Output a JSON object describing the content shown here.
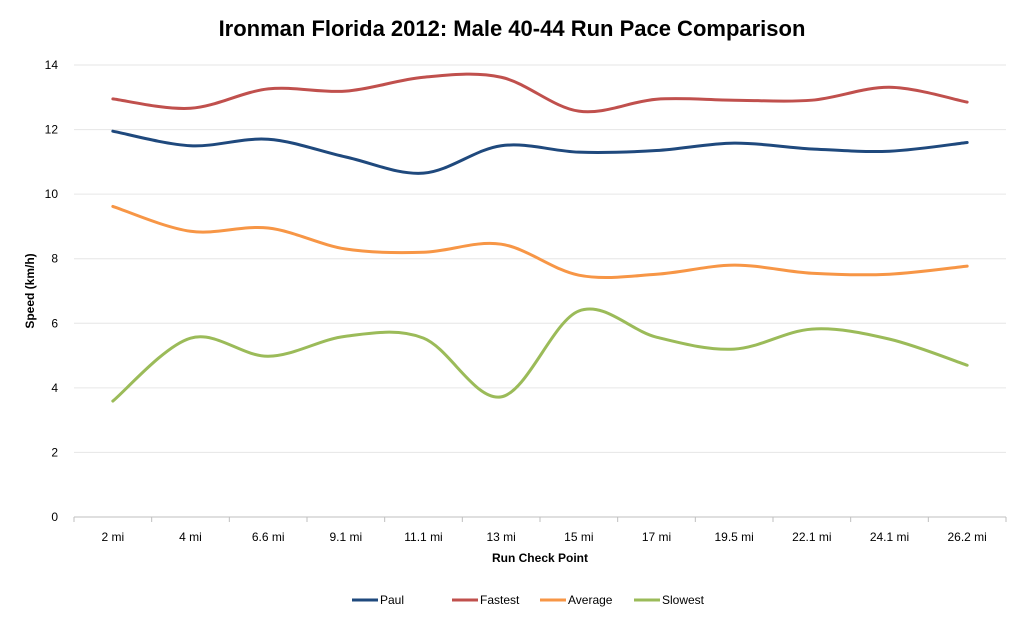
{
  "chart_data": {
    "type": "line",
    "title": "Ironman Florida 2012: Male 40-44 Run Pace Comparison",
    "xlabel": "Run Check Point",
    "ylabel": "Speed (km/h)",
    "ylim": [
      0,
      14
    ],
    "yticks": [
      0,
      2,
      4,
      6,
      8,
      10,
      12,
      14
    ],
    "grid": true,
    "smooth": true,
    "legend_position": "bottom",
    "categories": [
      "2 mi",
      "4 mi",
      "6.6 mi",
      "9.1 mi",
      "11.1 mi",
      "13 mi",
      "15 mi",
      "17 mi",
      "19.5 mi",
      "22.1 mi",
      "24.1 mi",
      "26.2 mi"
    ],
    "series": [
      {
        "name": "Paul",
        "color": "#1f497d",
        "values": [
          11.95,
          11.5,
          11.7,
          11.15,
          10.65,
          11.5,
          11.3,
          11.35,
          11.58,
          11.4,
          11.33,
          11.6
        ]
      },
      {
        "name": "Fastest",
        "color": "#c0504d",
        "values": [
          12.95,
          12.66,
          13.26,
          13.19,
          13.62,
          13.62,
          12.57,
          12.94,
          12.91,
          12.91,
          13.31,
          12.85
        ]
      },
      {
        "name": "Average",
        "color": "#f79646",
        "values": [
          9.62,
          8.85,
          8.95,
          8.3,
          8.2,
          8.45,
          7.49,
          7.52,
          7.8,
          7.55,
          7.52,
          7.77
        ]
      },
      {
        "name": "Slowest",
        "color": "#9bbb59",
        "values": [
          3.59,
          5.54,
          4.98,
          5.6,
          5.54,
          3.72,
          6.38,
          5.57,
          5.2,
          5.82,
          5.51,
          4.7
        ]
      }
    ]
  }
}
